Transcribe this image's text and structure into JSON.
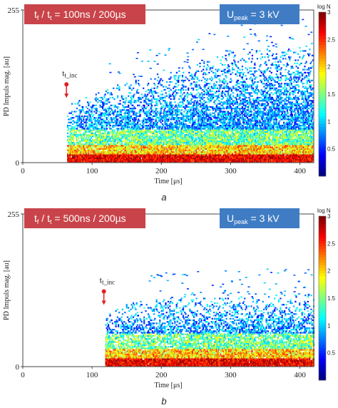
{
  "chart_data": [
    {
      "panel_letter": "a",
      "type": "heatmap",
      "xlabel": "Time [μs]",
      "ylabel": "PD Impuls mag. [au]",
      "xlim": [
        0,
        420
      ],
      "ylim": [
        0,
        255
      ],
      "xticks": [
        "0",
        "100",
        "200",
        "300",
        "400"
      ],
      "yticks": [
        "0",
        "255"
      ],
      "rise_fall_label": {
        "t": "t",
        "sub1": "f",
        "slash": " / t",
        "sub2": "t",
        "value": " = 100ns / 200µs"
      },
      "upeak_label": {
        "u": "U",
        "sub": "peak",
        "value": " = 3 kV"
      },
      "marker_label": {
        "t": "t",
        "sub": "t_inc"
      },
      "colorbar": {
        "title": "log N",
        "ticks": [
          "3",
          "2.5",
          "2",
          "1.5",
          "1",
          "0.5"
        ]
      },
      "onset_time": 65,
      "marker_time": 63,
      "envelope": [
        [
          65,
          95
        ],
        [
          100,
          115
        ],
        [
          150,
          135
        ],
        [
          200,
          150
        ],
        [
          250,
          165
        ],
        [
          300,
          185
        ],
        [
          350,
          190
        ],
        [
          400,
          195
        ],
        [
          420,
          195
        ]
      ],
      "colors": {
        "box_left": "#c9444a",
        "box_right": "#3f7cc4",
        "marker": "#e02020"
      }
    },
    {
      "panel_letter": "b",
      "type": "heatmap",
      "xlabel": "Time [μs]",
      "ylabel": "PD Impuls mag. [au]",
      "xlim": [
        0,
        420
      ],
      "ylim": [
        0,
        255
      ],
      "xticks": [
        "0",
        "100",
        "200",
        "300",
        "400"
      ],
      "yticks": [
        "0",
        "255"
      ],
      "rise_fall_label": {
        "t": "t",
        "sub1": "f",
        "slash": " / t",
        "sub2": "t",
        "value": " = 500ns / 200µs"
      },
      "upeak_label": {
        "u": "U",
        "sub": "peak",
        "value": " = 3 kV"
      },
      "marker_label": {
        "t": "t",
        "sub": "t_inc"
      },
      "colorbar": {
        "title": "log N",
        "ticks": [
          "3",
          "2.5",
          "2",
          "1.5",
          "1",
          "0.5"
        ]
      },
      "onset_time": 120,
      "marker_time": 117,
      "envelope": [
        [
          120,
          90
        ],
        [
          150,
          105
        ],
        [
          200,
          115
        ],
        [
          250,
          115
        ],
        [
          300,
          115
        ],
        [
          350,
          120
        ],
        [
          400,
          120
        ],
        [
          420,
          120
        ]
      ],
      "colors": {
        "box_left": "#c9444a",
        "box_right": "#3f7cc4",
        "marker": "#e02020"
      }
    }
  ]
}
